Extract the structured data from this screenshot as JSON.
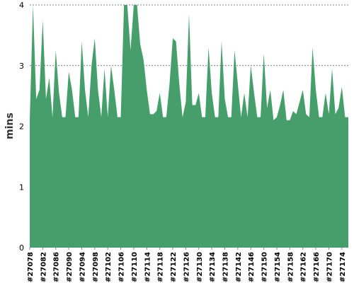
{
  "chart_data": {
    "type": "area",
    "title": "",
    "xlabel": "",
    "ylabel": "mins",
    "ylim": [
      0,
      4
    ],
    "y_ticks": [
      0,
      1,
      2,
      3,
      4
    ],
    "grid": true,
    "legend": "none",
    "color": "#469f6b",
    "x_tick_labels": [
      "#27078",
      "#27082",
      "#27086",
      "#27090",
      "#27094",
      "#27098",
      "#27102",
      "#27106",
      "#27110",
      "#27114",
      "#27118",
      "#27122",
      "#27126",
      "#27130",
      "#27134",
      "#27138",
      "#27142",
      "#27146",
      "#27150",
      "#27154",
      "#27158",
      "#27162",
      "#27166",
      "#27170",
      "#27174"
    ],
    "x_start": 27078,
    "x_end": 27176,
    "series": [
      {
        "values": [
          2.1,
          4.0,
          2.45,
          2.6,
          3.75,
          2.45,
          2.8,
          2.15,
          3.25,
          2.55,
          2.15,
          2.15,
          2.9,
          2.6,
          2.15,
          2.15,
          3.4,
          2.6,
          2.15,
          3.0,
          3.45,
          2.6,
          2.15,
          2.95,
          2.15,
          3.0,
          2.6,
          2.15,
          2.15,
          4.0,
          4.0,
          3.25,
          4.0,
          4.0,
          3.35,
          3.1,
          2.6,
          2.2,
          2.2,
          2.25,
          2.55,
          2.15,
          2.15,
          2.7,
          3.45,
          3.4,
          2.7,
          2.15,
          2.4,
          3.85,
          2.35,
          2.35,
          2.55,
          2.15,
          2.15,
          3.3,
          2.55,
          2.15,
          2.15,
          3.4,
          2.45,
          2.15,
          2.15,
          3.25,
          2.7,
          2.15,
          2.55,
          2.15,
          3.0,
          2.55,
          2.15,
          2.15,
          3.2,
          2.3,
          2.6,
          2.1,
          2.15,
          2.35,
          2.6,
          2.1,
          2.1,
          2.25,
          2.2,
          2.4,
          2.6,
          2.2,
          2.15,
          3.3,
          2.6,
          2.15,
          2.15,
          2.55,
          2.2,
          2.95,
          2.2,
          2.3,
          2.65,
          2.15,
          2.15
        ]
      }
    ]
  }
}
